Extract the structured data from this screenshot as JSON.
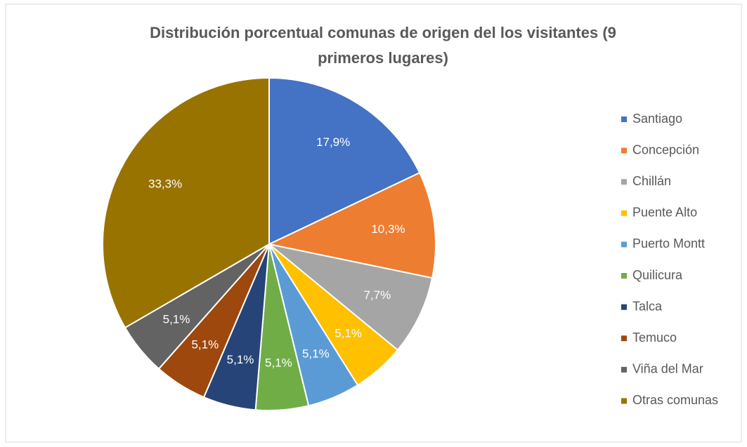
{
  "chart_data": {
    "type": "pie",
    "title": "Distribución porcentual comunas de origen del los visitantes (9 primeros lugares)",
    "categories": [
      "Santiago",
      "Concepción",
      "Chillán",
      "Puente Alto",
      "Puerto Montt",
      "Quilicura",
      "Talca",
      "Temuco",
      "Viña del Mar",
      "Otras comunas"
    ],
    "values": [
      17.9,
      10.3,
      7.7,
      5.1,
      5.1,
      5.1,
      5.1,
      5.1,
      5.1,
      33.3
    ],
    "value_labels": [
      "17,9%",
      "10,3%",
      "7,7%",
      "5,1%",
      "5,1%",
      "5,1%",
      "5,1%",
      "5,1%",
      "5,1%",
      "33,3%"
    ],
    "colors": [
      "#4472C4",
      "#ED7D31",
      "#A5A5A5",
      "#FFC000",
      "#5B9BD5",
      "#70AD47",
      "#264478",
      "#9E480E",
      "#636363",
      "#997300"
    ],
    "legend": "right"
  }
}
